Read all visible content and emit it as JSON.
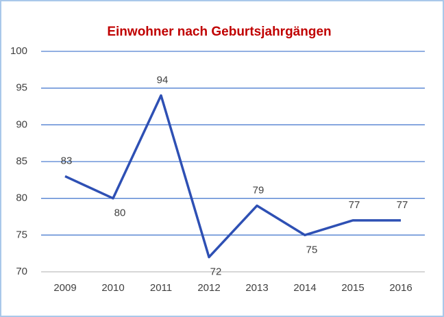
{
  "chart_data": {
    "type": "line",
    "title": "Einwohner nach Geburtsjahrgängen",
    "categories": [
      "2009",
      "2010",
      "2011",
      "2012",
      "2013",
      "2014",
      "2015",
      "2016"
    ],
    "values": [
      83,
      80,
      94,
      72,
      79,
      75,
      77,
      77
    ],
    "color": "#2e50b4",
    "ylim": [
      70,
      100
    ],
    "yticks": [
      70,
      75,
      80,
      85,
      90,
      95,
      100
    ],
    "grid": true,
    "grid_color": "#4f7fd0"
  }
}
